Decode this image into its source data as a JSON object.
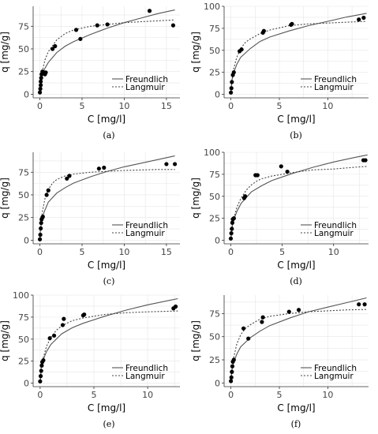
{
  "legend_entries": [
    "Freundlich",
    "Langmuir"
  ],
  "colors": {
    "data_points": "#000000",
    "freundlich_line": "#555555",
    "langmuir_line": "#444444",
    "grid": "#e6e6e6"
  },
  "chart_data": [
    {
      "type": "scatter",
      "panel": "(a)",
      "xlabel": "C [mg/l]",
      "ylabel": "q [mg/g]",
      "xlim": [
        -0.8,
        16.6
      ],
      "ylim": [
        -4,
        97
      ],
      "xticks": [
        0,
        5,
        10,
        15
      ],
      "yticks": [
        0,
        25,
        50,
        75
      ],
      "grid": true,
      "legend_position": "bottom-right",
      "points": [
        [
          0.0,
          2
        ],
        [
          0.05,
          6
        ],
        [
          0.1,
          10
        ],
        [
          0.1,
          14
        ],
        [
          0.15,
          18
        ],
        [
          0.2,
          22
        ],
        [
          0.3,
          25
        ],
        [
          0.5,
          24
        ],
        [
          0.6,
          22
        ],
        [
          0.7,
          24
        ],
        [
          1.5,
          50
        ],
        [
          1.8,
          53
        ],
        [
          4.3,
          71
        ],
        [
          4.8,
          61
        ],
        [
          6.8,
          76
        ],
        [
          8.0,
          77
        ],
        [
          13.0,
          92
        ],
        [
          15.8,
          76
        ]
      ],
      "series": [
        {
          "name": "Freundlich",
          "style": "solid",
          "x": [
            0,
            0.05,
            0.2,
            0.5,
            1,
            2,
            3,
            4,
            6,
            8,
            10,
            12,
            14,
            16
          ],
          "y": [
            0,
            10,
            18,
            27,
            35,
            46,
            53,
            58,
            66,
            73,
            79,
            84,
            89,
            93
          ]
        },
        {
          "name": "Langmuir",
          "style": "dotted",
          "x": [
            0,
            0.1,
            0.3,
            0.6,
            1,
            2,
            3,
            4,
            6,
            8,
            10,
            12,
            14,
            16
          ],
          "y": [
            0,
            12,
            26,
            38,
            47,
            60,
            67,
            71,
            75,
            77,
            79,
            80,
            81,
            82
          ]
        }
      ]
    },
    {
      "type": "scatter",
      "panel": "(b)",
      "xlabel": "C [mg/l]",
      "ylabel": "q [mg/g]",
      "xlim": [
        -0.7,
        14.2
      ],
      "ylim": [
        -4,
        100
      ],
      "xticks": [
        0,
        5,
        10
      ],
      "yticks": [
        0,
        25,
        50,
        75,
        100
      ],
      "grid": true,
      "legend_position": "bottom-right",
      "points": [
        [
          0.0,
          2
        ],
        [
          0.05,
          7
        ],
        [
          0.1,
          14
        ],
        [
          0.2,
          22
        ],
        [
          0.3,
          25
        ],
        [
          0.9,
          49
        ],
        [
          1.1,
          51
        ],
        [
          3.3,
          70
        ],
        [
          3.4,
          72
        ],
        [
          6.2,
          79
        ],
        [
          6.3,
          80
        ],
        [
          13.2,
          85
        ],
        [
          13.7,
          87
        ]
      ],
      "series": [
        {
          "name": "Freundlich",
          "style": "solid",
          "x": [
            0,
            0.1,
            0.3,
            0.6,
            1,
            2,
            3,
            4,
            6,
            8,
            10,
            12,
            14
          ],
          "y": [
            0,
            16,
            25,
            34,
            42,
            52,
            60,
            65,
            72,
            78,
            83,
            88,
            92
          ]
        },
        {
          "name": "Langmuir",
          "style": "dotted",
          "x": [
            0,
            0.1,
            0.3,
            0.6,
            1,
            1.5,
            2,
            3,
            4,
            6,
            8,
            10,
            12,
            14
          ],
          "y": [
            0,
            14,
            30,
            42,
            52,
            59,
            63,
            69,
            73,
            78,
            80,
            81,
            82,
            83
          ]
        }
      ]
    },
    {
      "type": "scatter",
      "panel": "(c)",
      "xlabel": "C [mg/l]",
      "ylabel": "q [mg/g]",
      "xlim": [
        -0.8,
        16.6
      ],
      "ylim": [
        -4,
        97
      ],
      "xticks": [
        0,
        5,
        10,
        15
      ],
      "yticks": [
        0,
        25,
        50,
        75
      ],
      "grid": true,
      "legend_position": "bottom-right",
      "points": [
        [
          0.0,
          1
        ],
        [
          0.05,
          6
        ],
        [
          0.1,
          13
        ],
        [
          0.15,
          19
        ],
        [
          0.2,
          23
        ],
        [
          0.3,
          25
        ],
        [
          0.35,
          26
        ],
        [
          0.8,
          50
        ],
        [
          1.0,
          55
        ],
        [
          3.2,
          68
        ],
        [
          3.5,
          71
        ],
        [
          7.0,
          79
        ],
        [
          7.6,
          80
        ],
        [
          15.0,
          84
        ],
        [
          16.0,
          84
        ]
      ],
      "series": [
        {
          "name": "Freundlich",
          "style": "solid",
          "x": [
            0,
            0.05,
            0.2,
            0.5,
            1,
            2,
            3,
            4,
            6,
            8,
            10,
            12,
            14,
            16
          ],
          "y": [
            0,
            10,
            20,
            31,
            42,
            52,
            58,
            63,
            70,
            76,
            81,
            85,
            89,
            93
          ]
        },
        {
          "name": "Langmuir",
          "style": "dotted",
          "x": [
            0,
            0.1,
            0.3,
            0.6,
            1,
            1.5,
            2,
            3,
            4,
            6,
            8,
            10,
            12,
            14,
            16
          ],
          "y": [
            0,
            15,
            32,
            46,
            56,
            63,
            67,
            71,
            73,
            75,
            76,
            77,
            77.5,
            78,
            78
          ]
        }
      ]
    },
    {
      "type": "scatter",
      "panel": "(d)",
      "xlabel": "C [mg/l]",
      "ylabel": "q [mg/g]",
      "xlim": [
        -0.65,
        13.4
      ],
      "ylim": [
        -4,
        100
      ],
      "xticks": [
        0,
        5,
        10
      ],
      "yticks": [
        0,
        25,
        50,
        75,
        100
      ],
      "grid": true,
      "legend_position": "bottom-right",
      "points": [
        [
          0.0,
          2
        ],
        [
          0.05,
          8
        ],
        [
          0.1,
          13
        ],
        [
          0.15,
          20
        ],
        [
          0.2,
          24
        ],
        [
          0.3,
          25
        ],
        [
          1.3,
          48
        ],
        [
          1.4,
          50
        ],
        [
          2.4,
          74
        ],
        [
          2.6,
          74
        ],
        [
          4.9,
          84
        ],
        [
          5.5,
          78
        ],
        [
          12.9,
          91
        ],
        [
          13.1,
          91
        ]
      ],
      "series": [
        {
          "name": "Freundlich",
          "style": "solid",
          "x": [
            0,
            0.1,
            0.3,
            0.6,
            1,
            2,
            3,
            4,
            6,
            8,
            10,
            12,
            13.3
          ],
          "y": [
            0,
            15,
            24,
            33,
            42,
            55,
            62,
            68,
            76,
            83,
            89,
            94,
            97
          ]
        },
        {
          "name": "Langmuir",
          "style": "dotted",
          "x": [
            0,
            0.1,
            0.3,
            0.6,
            1,
            1.5,
            2,
            2.5,
            3,
            4,
            6,
            8,
            10,
            12,
            13.3
          ],
          "y": [
            0,
            12,
            25,
            38,
            48,
            57,
            63,
            67,
            70,
            73,
            77,
            80,
            81,
            83,
            84
          ]
        }
      ]
    },
    {
      "type": "scatter",
      "panel": "(e)",
      "xlabel": "C [mg/l]",
      "ylabel": "q [mg/g]",
      "xlim": [
        -0.65,
        13.0
      ],
      "ylim": [
        -4,
        100
      ],
      "xticks": [
        0,
        5,
        10
      ],
      "yticks": [
        0,
        25,
        50,
        75,
        100
      ],
      "grid": true,
      "legend_position": "bottom-right",
      "points": [
        [
          0.0,
          2
        ],
        [
          0.05,
          8
        ],
        [
          0.1,
          14
        ],
        [
          0.15,
          20
        ],
        [
          0.2,
          24
        ],
        [
          0.3,
          26
        ],
        [
          0.9,
          51
        ],
        [
          1.3,
          54
        ],
        [
          2.1,
          66
        ],
        [
          2.2,
          73
        ],
        [
          4.0,
          77
        ],
        [
          4.1,
          78
        ],
        [
          12.4,
          85
        ],
        [
          12.6,
          87
        ]
      ],
      "series": [
        {
          "name": "Freundlich",
          "style": "solid",
          "x": [
            0,
            0.1,
            0.3,
            0.6,
            1,
            2,
            3,
            4,
            6,
            8,
            10,
            12,
            12.8
          ],
          "y": [
            0,
            18,
            27,
            36,
            44,
            56,
            63,
            68,
            76,
            83,
            89,
            94,
            96
          ]
        },
        {
          "name": "Langmuir",
          "style": "dotted",
          "x": [
            0,
            0.1,
            0.3,
            0.6,
            1,
            1.5,
            2,
            3,
            4,
            6,
            8,
            10,
            12.8
          ],
          "y": [
            0,
            14,
            29,
            42,
            52,
            60,
            65,
            71,
            74,
            78,
            80,
            81,
            82
          ]
        }
      ]
    },
    {
      "type": "scatter",
      "panel": "(f)",
      "xlabel": "C [mg/l]",
      "ylabel": "q [mg/g]",
      "xlim": [
        -0.7,
        14.2
      ],
      "ylim": [
        -4,
        95
      ],
      "xticks": [
        0,
        5,
        10
      ],
      "yticks": [
        0,
        25,
        50,
        75
      ],
      "grid": true,
      "legend_position": "bottom-right",
      "points": [
        [
          0.0,
          2
        ],
        [
          0.05,
          6
        ],
        [
          0.1,
          12
        ],
        [
          0.15,
          18
        ],
        [
          0.2,
          23
        ],
        [
          0.3,
          25
        ],
        [
          1.3,
          59
        ],
        [
          1.8,
          48
        ],
        [
          3.2,
          66
        ],
        [
          3.3,
          71
        ],
        [
          6.0,
          77
        ],
        [
          7.0,
          79
        ],
        [
          13.2,
          85
        ],
        [
          13.8,
          85
        ]
      ],
      "series": [
        {
          "name": "Freundlich",
          "style": "solid",
          "x": [
            0,
            0.1,
            0.3,
            0.6,
            1,
            2,
            3,
            4,
            6,
            8,
            10,
            12,
            14
          ],
          "y": [
            0,
            14,
            23,
            31,
            39,
            49,
            56,
            62,
            70,
            77,
            82,
            87,
            92
          ]
        },
        {
          "name": "Langmuir",
          "style": "dotted",
          "x": [
            0,
            0.1,
            0.3,
            0.6,
            1,
            1.5,
            2,
            3,
            4,
            6,
            8,
            10,
            12,
            14
          ],
          "y": [
            0,
            13,
            28,
            42,
            52,
            59,
            63,
            69,
            72,
            75,
            77,
            78,
            79,
            79.5
          ]
        }
      ]
    }
  ]
}
